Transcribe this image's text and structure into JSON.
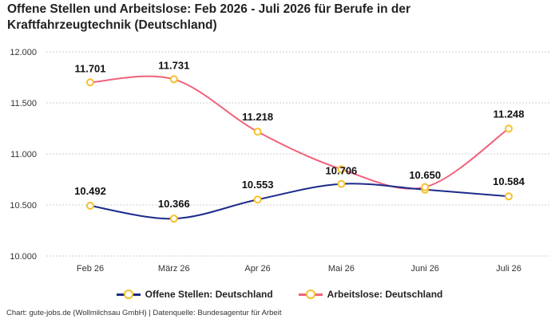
{
  "title": "Offene Stellen und Arbeitslose: Feb 2026 - Juli 2026 für Berufe in der Kraftfahrzeugtechnik (Deutschland)",
  "footer": "Chart: gute-jobs.de (Wollmilchsau GmbH) | Datenquelle: Bundesagentur für Arbeit",
  "colors": {
    "offene": "#1b2a8a",
    "arbeitslose": "#f0627c",
    "marker": "#f5c02b",
    "grid": "#cccccc"
  },
  "chart_data": {
    "type": "line",
    "categories": [
      "Feb 26",
      "März 26",
      "Apr 26",
      "Mai 26",
      "Juni 26",
      "Juli 26"
    ],
    "ylim": [
      10000,
      12000
    ],
    "yticks": [
      10000,
      10500,
      11000,
      11500,
      12000
    ],
    "ytick_labels": [
      "10.000",
      "10.500",
      "11.000",
      "11.500",
      "12.000"
    ],
    "grid": true,
    "legend_position": "bottom",
    "series": [
      {
        "name": "Offene Stellen: Deutschland",
        "color": "#1b2a8a",
        "values": [
          10492,
          10366,
          10553,
          10706,
          10650,
          10584
        ],
        "labels": [
          "10.492",
          "10.366",
          "10.553",
          "10.706",
          "10.650",
          "10.584"
        ]
      },
      {
        "name": "Arbeitslose: Deutschland",
        "color": "#f0627c",
        "values": [
          11701,
          11731,
          11218,
          10850,
          10675,
          11248
        ],
        "labels": [
          "11.701",
          "11.731",
          "11.218",
          "",
          "",
          "11.248"
        ]
      }
    ]
  }
}
